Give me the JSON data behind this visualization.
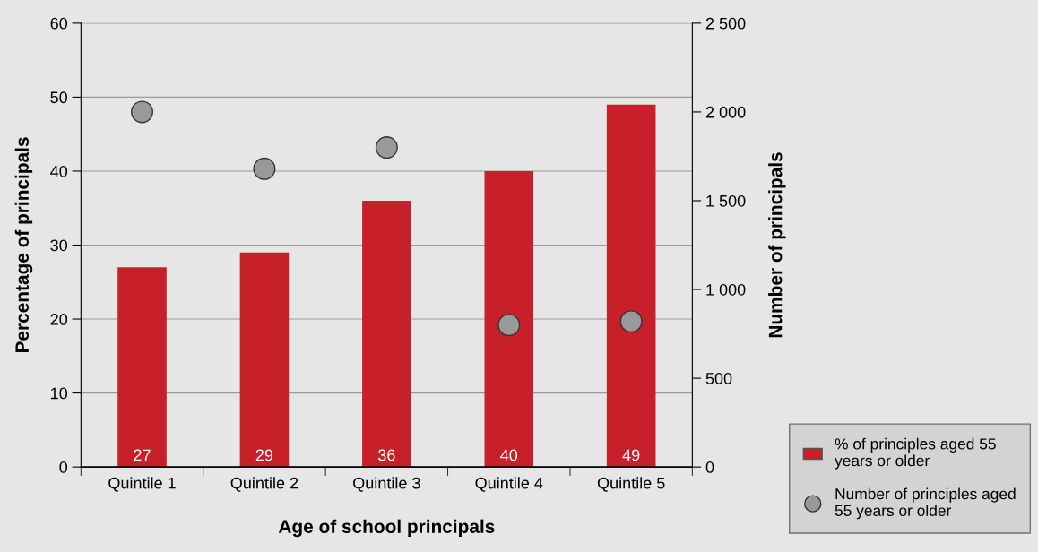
{
  "chart_data": {
    "type": "bar",
    "xlabel": "Age of school principals",
    "ylabel": "Percentage of principals",
    "y2label": "Number of principals",
    "categories": [
      "Quintile 1",
      "Quintile 2",
      "Quintile 3",
      "Quintile 4",
      "Quintile 5"
    ],
    "series": [
      {
        "name": "% of principles aged 55 years or older",
        "color": "#c8202a",
        "values": [
          27,
          29,
          36,
          40,
          49
        ],
        "data_labels": true
      },
      {
        "name": "Number of principles aged 55 years or older",
        "type": "scatter",
        "axis": "y2",
        "color": "#999999",
        "marker": "circle",
        "values": [
          2000,
          1680,
          1800,
          800,
          820
        ]
      }
    ],
    "ylim": [
      0,
      60
    ],
    "yticks": [
      0,
      10,
      20,
      30,
      40,
      50,
      60
    ],
    "y2lim": [
      0,
      2500
    ],
    "y2ticks": [
      0,
      {
        "value": 500,
        "label": "500"
      },
      {
        "value": 1000,
        "label": "1 000"
      },
      {
        "value": 1500,
        "label": "1 500"
      },
      {
        "value": 2000,
        "label": "2 000"
      },
      {
        "value": 2500,
        "label": "2 500"
      }
    ],
    "grid": "y",
    "legend": "bottom right"
  }
}
